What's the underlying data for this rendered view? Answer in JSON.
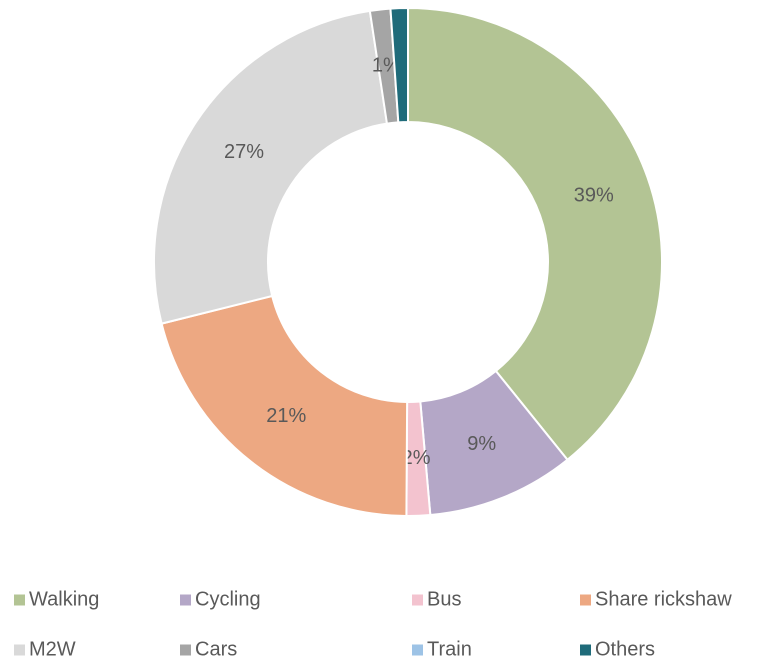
{
  "chart_data": {
    "type": "donut",
    "categories": [
      "Walking",
      "Cycling",
      "Bus",
      "Share rickshaw",
      "M2W",
      "Cars",
      "Train",
      "Others"
    ],
    "values": [
      39.2,
      9.4,
      1.5,
      21.0,
      26.5,
      1.3,
      0.0,
      1.1
    ],
    "value_labels": [
      "39%",
      "9%",
      "2%",
      "21%",
      "27%",
      "1%",
      null,
      null
    ],
    "colors": [
      "#b3c494",
      "#b4a7c7",
      "#f3c3cf",
      "#eda882",
      "#d9d9d9",
      "#a5a5a5",
      "#9dc3e6",
      "#1f6b7a"
    ],
    "legend": "bottom"
  }
}
